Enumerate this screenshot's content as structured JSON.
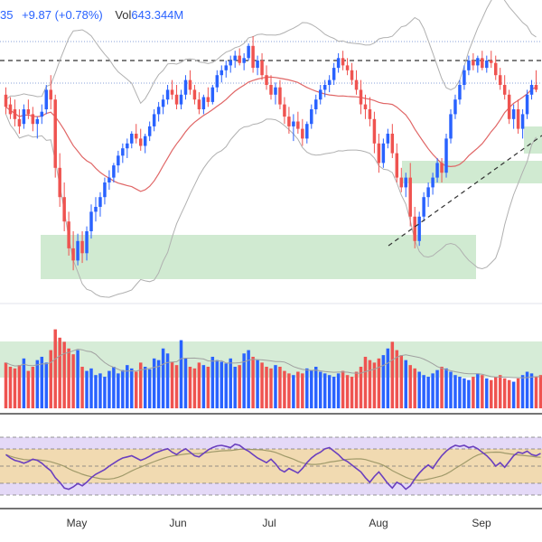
{
  "legend": {
    "last_fragment": "35",
    "change": "+9.87 (+0.78%)",
    "volume_label": "Vol",
    "volume_value": "643.344M"
  },
  "colors": {
    "up": "#2962ff",
    "down": "#ef5350",
    "background": "#ffffff",
    "bollinger": "#b0b0b0",
    "moving_average": "#e06666",
    "zone_fill": "#c8e6c9",
    "rsi_line": "#6a3fbf",
    "rsi_signal": "#a09a6a",
    "rsi_band": "#f3d9a5",
    "rsi_outer_band": "#ddd0f5",
    "volume_ma": "#a0a0a0"
  },
  "chart_data": {
    "type": "candlestick",
    "x_axis": {
      "labels": [
        "May",
        "Jun",
        "Jul",
        "Aug",
        "Sep"
      ]
    },
    "price_candles": [
      {
        "o": 0.76,
        "h": 0.79,
        "l": 0.68,
        "c": 0.71
      },
      {
        "o": 0.72,
        "h": 0.75,
        "l": 0.66,
        "c": 0.68
      },
      {
        "o": 0.7,
        "h": 0.74,
        "l": 0.63,
        "c": 0.66
      },
      {
        "o": 0.66,
        "h": 0.7,
        "l": 0.6,
        "c": 0.63
      },
      {
        "o": 0.64,
        "h": 0.72,
        "l": 0.62,
        "c": 0.7
      },
      {
        "o": 0.7,
        "h": 0.74,
        "l": 0.66,
        "c": 0.68
      },
      {
        "o": 0.68,
        "h": 0.71,
        "l": 0.61,
        "c": 0.64
      },
      {
        "o": 0.64,
        "h": 0.67,
        "l": 0.58,
        "c": 0.66
      },
      {
        "o": 0.67,
        "h": 0.72,
        "l": 0.64,
        "c": 0.69
      },
      {
        "o": 0.7,
        "h": 0.8,
        "l": 0.68,
        "c": 0.78
      },
      {
        "o": 0.78,
        "h": 0.84,
        "l": 0.7,
        "c": 0.74
      },
      {
        "o": 0.74,
        "h": 0.76,
        "l": 0.42,
        "c": 0.46
      },
      {
        "o": 0.46,
        "h": 0.52,
        "l": 0.3,
        "c": 0.34
      },
      {
        "o": 0.34,
        "h": 0.4,
        "l": 0.2,
        "c": 0.24
      },
      {
        "o": 0.24,
        "h": 0.28,
        "l": 0.1,
        "c": 0.13
      },
      {
        "o": 0.13,
        "h": 0.2,
        "l": 0.04,
        "c": 0.08
      },
      {
        "o": 0.08,
        "h": 0.19,
        "l": 0.06,
        "c": 0.16
      },
      {
        "o": 0.16,
        "h": 0.2,
        "l": 0.07,
        "c": 0.11
      },
      {
        "o": 0.11,
        "h": 0.22,
        "l": 0.08,
        "c": 0.2
      },
      {
        "o": 0.2,
        "h": 0.31,
        "l": 0.17,
        "c": 0.28
      },
      {
        "o": 0.28,
        "h": 0.34,
        "l": 0.24,
        "c": 0.3
      },
      {
        "o": 0.3,
        "h": 0.36,
        "l": 0.26,
        "c": 0.34
      },
      {
        "o": 0.34,
        "h": 0.42,
        "l": 0.31,
        "c": 0.4
      },
      {
        "o": 0.4,
        "h": 0.45,
        "l": 0.37,
        "c": 0.42
      },
      {
        "o": 0.42,
        "h": 0.48,
        "l": 0.4,
        "c": 0.47
      },
      {
        "o": 0.47,
        "h": 0.53,
        "l": 0.44,
        "c": 0.51
      },
      {
        "o": 0.51,
        "h": 0.56,
        "l": 0.48,
        "c": 0.54
      },
      {
        "o": 0.54,
        "h": 0.58,
        "l": 0.5,
        "c": 0.56
      },
      {
        "o": 0.56,
        "h": 0.61,
        "l": 0.54,
        "c": 0.6
      },
      {
        "o": 0.6,
        "h": 0.64,
        "l": 0.56,
        "c": 0.58
      },
      {
        "o": 0.58,
        "h": 0.62,
        "l": 0.53,
        "c": 0.55
      },
      {
        "o": 0.55,
        "h": 0.6,
        "l": 0.52,
        "c": 0.59
      },
      {
        "o": 0.59,
        "h": 0.65,
        "l": 0.57,
        "c": 0.63
      },
      {
        "o": 0.63,
        "h": 0.7,
        "l": 0.61,
        "c": 0.68
      },
      {
        "o": 0.68,
        "h": 0.73,
        "l": 0.65,
        "c": 0.71
      },
      {
        "o": 0.71,
        "h": 0.76,
        "l": 0.68,
        "c": 0.74
      },
      {
        "o": 0.74,
        "h": 0.8,
        "l": 0.72,
        "c": 0.78
      },
      {
        "o": 0.78,
        "h": 0.82,
        "l": 0.74,
        "c": 0.76
      },
      {
        "o": 0.76,
        "h": 0.8,
        "l": 0.7,
        "c": 0.72
      },
      {
        "o": 0.72,
        "h": 0.78,
        "l": 0.7,
        "c": 0.76
      },
      {
        "o": 0.76,
        "h": 0.84,
        "l": 0.74,
        "c": 0.82
      },
      {
        "o": 0.82,
        "h": 0.86,
        "l": 0.76,
        "c": 0.78
      },
      {
        "o": 0.78,
        "h": 0.8,
        "l": 0.72,
        "c": 0.74
      },
      {
        "o": 0.74,
        "h": 0.77,
        "l": 0.68,
        "c": 0.7
      },
      {
        "o": 0.7,
        "h": 0.76,
        "l": 0.68,
        "c": 0.75
      },
      {
        "o": 0.75,
        "h": 0.79,
        "l": 0.71,
        "c": 0.73
      },
      {
        "o": 0.73,
        "h": 0.8,
        "l": 0.72,
        "c": 0.79
      },
      {
        "o": 0.79,
        "h": 0.86,
        "l": 0.77,
        "c": 0.84
      },
      {
        "o": 0.84,
        "h": 0.88,
        "l": 0.81,
        "c": 0.86
      },
      {
        "o": 0.86,
        "h": 0.9,
        "l": 0.83,
        "c": 0.88
      },
      {
        "o": 0.88,
        "h": 0.92,
        "l": 0.85,
        "c": 0.9
      },
      {
        "o": 0.9,
        "h": 0.94,
        "l": 0.87,
        "c": 0.92
      },
      {
        "o": 0.92,
        "h": 0.95,
        "l": 0.88,
        "c": 0.89
      },
      {
        "o": 0.89,
        "h": 0.93,
        "l": 0.86,
        "c": 0.91
      },
      {
        "o": 0.91,
        "h": 0.97,
        "l": 0.9,
        "c": 0.96
      },
      {
        "o": 0.96,
        "h": 1.0,
        "l": 0.85,
        "c": 0.87
      },
      {
        "o": 0.87,
        "h": 0.92,
        "l": 0.84,
        "c": 0.9
      },
      {
        "o": 0.9,
        "h": 0.93,
        "l": 0.82,
        "c": 0.84
      },
      {
        "o": 0.84,
        "h": 0.88,
        "l": 0.78,
        "c": 0.8
      },
      {
        "o": 0.8,
        "h": 0.84,
        "l": 0.74,
        "c": 0.76
      },
      {
        "o": 0.76,
        "h": 0.81,
        "l": 0.72,
        "c": 0.79
      },
      {
        "o": 0.79,
        "h": 0.82,
        "l": 0.7,
        "c": 0.72
      },
      {
        "o": 0.72,
        "h": 0.75,
        "l": 0.64,
        "c": 0.67
      },
      {
        "o": 0.67,
        "h": 0.71,
        "l": 0.6,
        "c": 0.63
      },
      {
        "o": 0.63,
        "h": 0.68,
        "l": 0.57,
        "c": 0.65
      },
      {
        "o": 0.65,
        "h": 0.69,
        "l": 0.6,
        "c": 0.62
      },
      {
        "o": 0.62,
        "h": 0.66,
        "l": 0.55,
        "c": 0.58
      },
      {
        "o": 0.58,
        "h": 0.65,
        "l": 0.56,
        "c": 0.64
      },
      {
        "o": 0.64,
        "h": 0.72,
        "l": 0.62,
        "c": 0.7
      },
      {
        "o": 0.7,
        "h": 0.76,
        "l": 0.68,
        "c": 0.74
      },
      {
        "o": 0.74,
        "h": 0.8,
        "l": 0.72,
        "c": 0.78
      },
      {
        "o": 0.78,
        "h": 0.82,
        "l": 0.75,
        "c": 0.8
      },
      {
        "o": 0.8,
        "h": 0.84,
        "l": 0.77,
        "c": 0.82
      },
      {
        "o": 0.82,
        "h": 0.89,
        "l": 0.8,
        "c": 0.87
      },
      {
        "o": 0.87,
        "h": 0.93,
        "l": 0.85,
        "c": 0.91
      },
      {
        "o": 0.91,
        "h": 0.94,
        "l": 0.86,
        "c": 0.88
      },
      {
        "o": 0.88,
        "h": 0.91,
        "l": 0.84,
        "c": 0.86
      },
      {
        "o": 0.86,
        "h": 0.89,
        "l": 0.8,
        "c": 0.82
      },
      {
        "o": 0.82,
        "h": 0.86,
        "l": 0.76,
        "c": 0.78
      },
      {
        "o": 0.78,
        "h": 0.82,
        "l": 0.68,
        "c": 0.72
      },
      {
        "o": 0.72,
        "h": 0.76,
        "l": 0.66,
        "c": 0.7
      },
      {
        "o": 0.7,
        "h": 0.75,
        "l": 0.63,
        "c": 0.66
      },
      {
        "o": 0.66,
        "h": 0.69,
        "l": 0.52,
        "c": 0.56
      },
      {
        "o": 0.56,
        "h": 0.6,
        "l": 0.44,
        "c": 0.48
      },
      {
        "o": 0.48,
        "h": 0.58,
        "l": 0.46,
        "c": 0.56
      },
      {
        "o": 0.56,
        "h": 0.62,
        "l": 0.54,
        "c": 0.6
      },
      {
        "o": 0.6,
        "h": 0.64,
        "l": 0.5,
        "c": 0.52
      },
      {
        "o": 0.52,
        "h": 0.56,
        "l": 0.4,
        "c": 0.42
      },
      {
        "o": 0.42,
        "h": 0.46,
        "l": 0.36,
        "c": 0.38
      },
      {
        "o": 0.38,
        "h": 0.44,
        "l": 0.34,
        "c": 0.42
      },
      {
        "o": 0.42,
        "h": 0.48,
        "l": 0.22,
        "c": 0.26
      },
      {
        "o": 0.26,
        "h": 0.3,
        "l": 0.13,
        "c": 0.16
      },
      {
        "o": 0.16,
        "h": 0.28,
        "l": 0.14,
        "c": 0.26
      },
      {
        "o": 0.26,
        "h": 0.36,
        "l": 0.24,
        "c": 0.34
      },
      {
        "o": 0.34,
        "h": 0.4,
        "l": 0.3,
        "c": 0.38
      },
      {
        "o": 0.38,
        "h": 0.44,
        "l": 0.35,
        "c": 0.42
      },
      {
        "o": 0.42,
        "h": 0.5,
        "l": 0.4,
        "c": 0.48
      },
      {
        "o": 0.48,
        "h": 0.5,
        "l": 0.4,
        "c": 0.44
      },
      {
        "o": 0.44,
        "h": 0.6,
        "l": 0.42,
        "c": 0.58
      },
      {
        "o": 0.58,
        "h": 0.7,
        "l": 0.56,
        "c": 0.68
      },
      {
        "o": 0.68,
        "h": 0.76,
        "l": 0.66,
        "c": 0.74
      },
      {
        "o": 0.74,
        "h": 0.82,
        "l": 0.72,
        "c": 0.8
      },
      {
        "o": 0.8,
        "h": 0.88,
        "l": 0.78,
        "c": 0.86
      },
      {
        "o": 0.86,
        "h": 0.92,
        "l": 0.84,
        "c": 0.9
      },
      {
        "o": 0.9,
        "h": 0.93,
        "l": 0.86,
        "c": 0.88
      },
      {
        "o": 0.88,
        "h": 0.92,
        "l": 0.85,
        "c": 0.91
      },
      {
        "o": 0.91,
        "h": 0.94,
        "l": 0.86,
        "c": 0.87
      },
      {
        "o": 0.87,
        "h": 0.92,
        "l": 0.85,
        "c": 0.9
      },
      {
        "o": 0.9,
        "h": 0.94,
        "l": 0.87,
        "c": 0.89
      },
      {
        "o": 0.89,
        "h": 0.92,
        "l": 0.82,
        "c": 0.84
      },
      {
        "o": 0.84,
        "h": 0.87,
        "l": 0.78,
        "c": 0.8
      },
      {
        "o": 0.8,
        "h": 0.84,
        "l": 0.74,
        "c": 0.76
      },
      {
        "o": 0.76,
        "h": 0.78,
        "l": 0.64,
        "c": 0.66
      },
      {
        "o": 0.66,
        "h": 0.72,
        "l": 0.62,
        "c": 0.7
      },
      {
        "o": 0.7,
        "h": 0.74,
        "l": 0.6,
        "c": 0.62
      },
      {
        "o": 0.62,
        "h": 0.7,
        "l": 0.58,
        "c": 0.68
      },
      {
        "o": 0.68,
        "h": 0.78,
        "l": 0.66,
        "c": 0.76
      },
      {
        "o": 0.76,
        "h": 0.82,
        "l": 0.74,
        "c": 0.8
      },
      {
        "o": 0.8,
        "h": 0.86,
        "l": 0.77,
        "c": 0.78
      }
    ],
    "volume": [
      0.55,
      0.5,
      0.48,
      0.52,
      0.6,
      0.45,
      0.5,
      0.58,
      0.62,
      0.55,
      0.7,
      0.95,
      0.85,
      0.8,
      0.72,
      0.65,
      0.7,
      0.5,
      0.45,
      0.48,
      0.4,
      0.42,
      0.38,
      0.45,
      0.5,
      0.42,
      0.46,
      0.52,
      0.48,
      0.44,
      0.55,
      0.5,
      0.47,
      0.6,
      0.58,
      0.72,
      0.66,
      0.56,
      0.52,
      0.82,
      0.6,
      0.5,
      0.48,
      0.55,
      0.52,
      0.5,
      0.62,
      0.58,
      0.56,
      0.54,
      0.6,
      0.5,
      0.52,
      0.66,
      0.7,
      0.62,
      0.58,
      0.55,
      0.5,
      0.48,
      0.52,
      0.5,
      0.45,
      0.42,
      0.4,
      0.44,
      0.42,
      0.48,
      0.46,
      0.5,
      0.44,
      0.42,
      0.4,
      0.38,
      0.42,
      0.45,
      0.4,
      0.38,
      0.44,
      0.5,
      0.62,
      0.58,
      0.55,
      0.6,
      0.64,
      0.72,
      0.8,
      0.7,
      0.64,
      0.58,
      0.52,
      0.48,
      0.44,
      0.4,
      0.38,
      0.42,
      0.46,
      0.5,
      0.48,
      0.44,
      0.4,
      0.38,
      0.36,
      0.34,
      0.38,
      0.42,
      0.4,
      0.36,
      0.34,
      0.38,
      0.4,
      0.36,
      0.34,
      0.32,
      0.36,
      0.4,
      0.44,
      0.42,
      0.38,
      0.4
    ],
    "rsi": [
      0.7,
      0.64,
      0.6,
      0.58,
      0.55,
      0.58,
      0.62,
      0.6,
      0.55,
      0.48,
      0.42,
      0.3,
      0.22,
      0.12,
      0.1,
      0.14,
      0.2,
      0.16,
      0.22,
      0.3,
      0.36,
      0.4,
      0.44,
      0.5,
      0.55,
      0.6,
      0.64,
      0.66,
      0.68,
      0.64,
      0.6,
      0.63,
      0.67,
      0.72,
      0.75,
      0.78,
      0.8,
      0.74,
      0.7,
      0.76,
      0.8,
      0.74,
      0.68,
      0.66,
      0.72,
      0.78,
      0.82,
      0.85,
      0.86,
      0.84,
      0.82,
      0.88,
      0.86,
      0.8,
      0.76,
      0.7,
      0.64,
      0.6,
      0.56,
      0.62,
      0.54,
      0.44,
      0.4,
      0.46,
      0.42,
      0.38,
      0.46,
      0.56,
      0.64,
      0.7,
      0.74,
      0.8,
      0.82,
      0.76,
      0.7,
      0.62,
      0.58,
      0.52,
      0.46,
      0.4,
      0.3,
      0.22,
      0.32,
      0.4,
      0.3,
      0.2,
      0.12,
      0.22,
      0.18,
      0.1,
      0.16,
      0.28,
      0.38,
      0.46,
      0.52,
      0.46,
      0.58,
      0.68,
      0.76,
      0.82,
      0.86,
      0.84,
      0.86,
      0.82,
      0.84,
      0.8,
      0.74,
      0.68,
      0.6,
      0.5,
      0.56,
      0.48,
      0.58,
      0.68,
      0.74,
      0.72,
      0.76,
      0.7,
      0.68,
      0.72
    ]
  }
}
